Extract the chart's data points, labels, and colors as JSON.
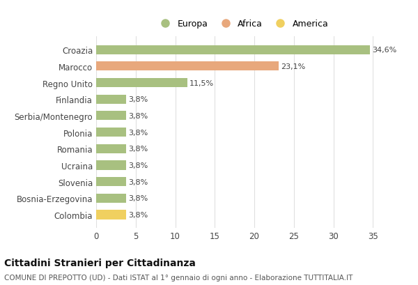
{
  "categories": [
    "Colombia",
    "Bosnia-Erzegovina",
    "Slovenia",
    "Ucraina",
    "Romania",
    "Polonia",
    "Serbia/Montenegro",
    "Finlandia",
    "Regno Unito",
    "Marocco",
    "Croazia"
  ],
  "values": [
    3.8,
    3.8,
    3.8,
    3.8,
    3.8,
    3.8,
    3.8,
    3.8,
    11.5,
    23.1,
    34.6
  ],
  "bar_colors": [
    "#f0d060",
    "#a8c080",
    "#a8c080",
    "#a8c080",
    "#a8c080",
    "#a8c080",
    "#a8c080",
    "#a8c080",
    "#a8c080",
    "#e8a87c",
    "#a8c080"
  ],
  "labels": [
    "3,8%",
    "3,8%",
    "3,8%",
    "3,8%",
    "3,8%",
    "3,8%",
    "3,8%",
    "3,8%",
    "11,5%",
    "23,1%",
    "34,6%"
  ],
  "legend": [
    {
      "label": "Europa",
      "color": "#a8c080"
    },
    {
      "label": "Africa",
      "color": "#e8a87c"
    },
    {
      "label": "America",
      "color": "#f0d060"
    }
  ],
  "xlim": [
    0,
    37
  ],
  "xticks": [
    0,
    5,
    10,
    15,
    20,
    25,
    30,
    35
  ],
  "title": "Cittadini Stranieri per Cittadinanza",
  "subtitle": "COMUNE DI PREPOTTO (UD) - Dati ISTAT al 1° gennaio di ogni anno - Elaborazione TUTTITALIA.IT",
  "background_color": "#ffffff",
  "grid_color": "#e0e0e0",
  "bar_height": 0.55,
  "title_fontsize": 10,
  "subtitle_fontsize": 7.5,
  "label_fontsize": 8,
  "tick_fontsize": 8.5,
  "legend_fontsize": 9
}
